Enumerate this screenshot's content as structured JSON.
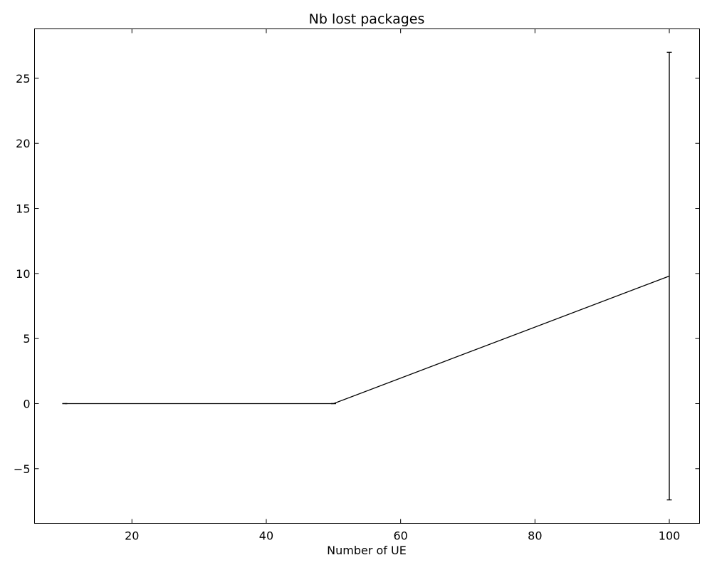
{
  "chart_data": {
    "type": "line",
    "title": "Nb lost packages",
    "xlabel": "Number of UE",
    "ylabel": "",
    "xlim": [
      5.5,
      104.5
    ],
    "ylim": [
      -9.2,
      28.8
    ],
    "xticks": [
      20,
      40,
      60,
      80,
      100
    ],
    "yticks": [
      -5,
      0,
      5,
      10,
      15,
      20,
      25
    ],
    "grid": false,
    "legend": "none",
    "series": [
      {
        "color": "#000000",
        "x": [
          10,
          50,
          100
        ],
        "y": [
          0,
          0,
          9.8
        ],
        "error": [
          0,
          0,
          17.2
        ]
      }
    ]
  }
}
